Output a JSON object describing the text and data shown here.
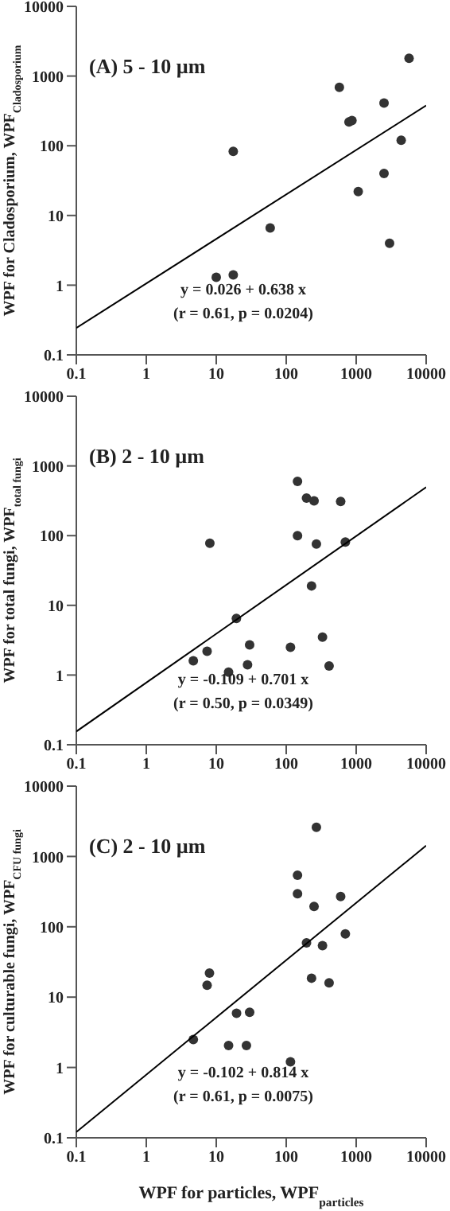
{
  "chart_data": [
    {
      "type": "scatter",
      "title": "(A) 5 - 10 µm",
      "ylabel": "WPF for Cladosporium, WPF$_{Cladosporium}$",
      "log": "xy",
      "marker": "circle",
      "xlim": [
        0.1,
        10000
      ],
      "ylim": [
        0.1,
        10000
      ],
      "xticks": [
        0.1,
        1,
        10,
        100,
        1000,
        10000
      ],
      "yticks": [
        0.1,
        1,
        10,
        100,
        1000,
        10000
      ],
      "annotations": [
        "y = 0.026 + 0.638 x",
        "(r = 0.61, p = 0.0204)"
      ],
      "series": [
        {
          "color": "#333333",
          "x": [
            10,
            17.5,
            17.5,
            59,
            575,
            790,
            870,
            1070,
            2500,
            2500,
            3000,
            4400,
            5700
          ],
          "values": [
            1.3,
            1.4,
            83,
            6.6,
            690,
            220,
            230,
            22,
            410,
            40,
            4,
            120,
            1800
          ]
        },
        {
          "type": "line",
          "color": "#000000",
          "marker": "none",
          "x": [
            0.1,
            10000
          ],
          "values": [
            0.244,
            378
          ]
        }
      ]
    },
    {
      "type": "scatter",
      "title": "(B) 2 - 10 µm",
      "ylabel": "WPF for total fungi, WPF$_{total fungi}$",
      "log": "xy",
      "marker": "circle",
      "xlim": [
        0.1,
        10000
      ],
      "ylim": [
        0.1,
        10000
      ],
      "xticks": [
        0.1,
        1,
        10,
        100,
        1000,
        10000
      ],
      "yticks": [
        0.1,
        1,
        10,
        100,
        1000,
        10000
      ],
      "annotations": [
        "y = -0.109 + 0.701 x",
        "(r = 0.50, p = 0.0349)"
      ],
      "series": [
        {
          "color": "#333333",
          "x": [
            4.7,
            7.4,
            8.1,
            15,
            19.4,
            28,
            30,
            115,
            145,
            145,
            195,
            230,
            250,
            270,
            330,
            410,
            600,
            700
          ],
          "values": [
            1.6,
            2.2,
            78,
            1.1,
            6.5,
            1.4,
            2.7,
            2.5,
            600,
            100,
            345,
            19,
            315,
            76,
            3.5,
            1.35,
            310,
            81
          ]
        },
        {
          "type": "line",
          "color": "#000000",
          "marker": "none",
          "x": [
            0.1,
            10000
          ],
          "values": [
            0.155,
            495
          ]
        }
      ]
    },
    {
      "type": "scatter",
      "title": "(C) 2 - 10 µm",
      "xlabel": "WPF for particles, WPF$_{particles}$",
      "ylabel": "WPF for culturable fungi, WPF$_{CFU fungi}$",
      "log": "xy",
      "marker": "circle",
      "xlim": [
        0.1,
        10000
      ],
      "ylim": [
        0.1,
        10000
      ],
      "xticks": [
        0.1,
        1,
        10,
        100,
        1000,
        10000
      ],
      "yticks": [
        0.1,
        1,
        10,
        100,
        1000,
        10000
      ],
      "annotations": [
        "y = -0.102 + 0.814 x",
        "(r = 0.61, p = 0.0075)"
      ],
      "series": [
        {
          "color": "#333333",
          "x": [
            4.7,
            7.4,
            8,
            15,
            19.5,
            27,
            30,
            115,
            145,
            145,
            195,
            230,
            250,
            270,
            330,
            410,
            600,
            700
          ],
          "values": [
            2.5,
            14.8,
            22,
            2.05,
            5.9,
            2.05,
            6.1,
            1.2,
            540,
            295,
            59,
            18.6,
            195,
            2600,
            54,
            16,
            270,
            79
          ]
        },
        {
          "type": "line",
          "color": "#000000",
          "marker": "none",
          "x": [
            0.1,
            10000
          ],
          "values": [
            0.121,
            1426
          ]
        }
      ]
    }
  ]
}
